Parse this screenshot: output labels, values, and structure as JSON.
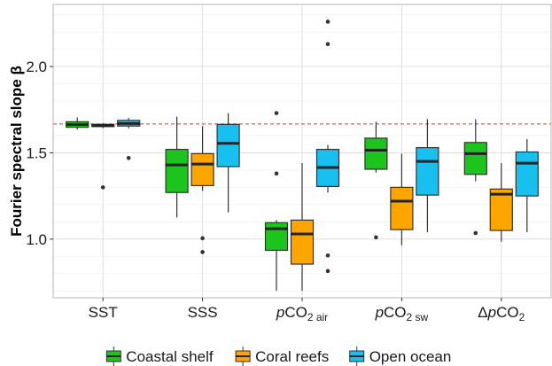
{
  "chart_data": {
    "type": "box",
    "title": "",
    "ylabel": "Fourier spectral slope β",
    "xlabel": "",
    "ylim": [
      0.66,
      2.36
    ],
    "yticks": [
      1.0,
      1.5,
      2.0
    ],
    "ytick_labels": [
      "1.0",
      "1.5",
      "2.0"
    ],
    "grid": true,
    "reference_line": {
      "y": 1.667,
      "color": "#e03030",
      "style": "dashed"
    },
    "categories": [
      {
        "key": "sst",
        "label": "SST"
      },
      {
        "key": "sss",
        "label": "SSS"
      },
      {
        "key": "pco2air",
        "italic": "p",
        "base": "CO",
        "sub": "2 air"
      },
      {
        "key": "pco2sw",
        "italic": "p",
        "base": "CO",
        "sub": "2 sw"
      },
      {
        "key": "dpco2",
        "prefix": "Δ",
        "italic": "p",
        "base": "CO",
        "sub": "2"
      }
    ],
    "legend": {
      "position": "bottom"
    },
    "series": [
      {
        "name": "Coastal shelf",
        "color": "#1ec41e",
        "boxes": [
          {
            "q1": 1.648,
            "median": 1.664,
            "q3": 1.68,
            "low": 1.635,
            "high": 1.705,
            "outliers": []
          },
          {
            "q1": 1.27,
            "median": 1.43,
            "q3": 1.52,
            "low": 1.125,
            "high": 1.71,
            "outliers": []
          },
          {
            "q1": 0.935,
            "median": 1.06,
            "q3": 1.095,
            "low": 0.7,
            "high": 1.11,
            "outliers": [
              1.73,
              1.38
            ]
          },
          {
            "q1": 1.405,
            "median": 1.515,
            "q3": 1.585,
            "low": 1.385,
            "high": 1.68,
            "outliers": [
              1.01
            ]
          },
          {
            "q1": 1.375,
            "median": 1.495,
            "q3": 1.56,
            "low": 1.335,
            "high": 1.695,
            "outliers": [
              1.035
            ]
          }
        ]
      },
      {
        "name": "Coral reefs",
        "color": "#ffa500",
        "boxes": [
          {
            "q1": 1.652,
            "median": 1.658,
            "q3": 1.665,
            "low": 1.643,
            "high": 1.672,
            "outliers": [
              1.3
            ]
          },
          {
            "q1": 1.31,
            "median": 1.435,
            "q3": 1.495,
            "low": 1.28,
            "high": 1.655,
            "outliers": [
              1.005,
              0.925
            ]
          },
          {
            "q1": 0.855,
            "median": 1.03,
            "q3": 1.11,
            "low": 0.7,
            "high": 1.44,
            "outliers": []
          },
          {
            "q1": 1.055,
            "median": 1.22,
            "q3": 1.3,
            "low": 0.965,
            "high": 1.495,
            "outliers": []
          },
          {
            "q1": 1.05,
            "median": 1.26,
            "q3": 1.29,
            "low": 0.985,
            "high": 1.44,
            "outliers": []
          }
        ]
      },
      {
        "name": "Open ocean",
        "color": "#18c0f0",
        "boxes": [
          {
            "q1": 1.655,
            "median": 1.67,
            "q3": 1.688,
            "low": 1.642,
            "high": 1.702,
            "outliers": [
              1.47
            ]
          },
          {
            "q1": 1.42,
            "median": 1.555,
            "q3": 1.665,
            "low": 1.155,
            "high": 1.73,
            "outliers": []
          },
          {
            "q1": 1.305,
            "median": 1.415,
            "q3": 1.52,
            "low": 1.27,
            "high": 1.545,
            "outliers": [
              2.26,
              2.13,
              0.905,
              0.815
            ]
          },
          {
            "q1": 1.255,
            "median": 1.45,
            "q3": 1.53,
            "low": 1.04,
            "high": 1.695,
            "outliers": []
          },
          {
            "q1": 1.25,
            "median": 1.44,
            "q3": 1.505,
            "low": 1.04,
            "high": 1.58,
            "outliers": []
          }
        ]
      }
    ]
  }
}
